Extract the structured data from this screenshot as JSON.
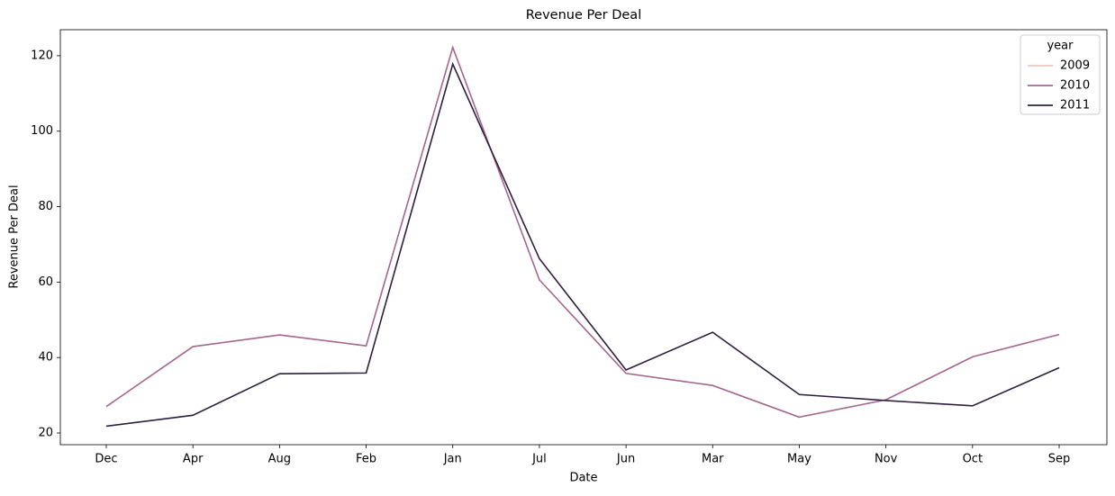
{
  "chart_data": {
    "type": "line",
    "title": "Revenue Per Deal",
    "xlabel": "Date",
    "ylabel": "Revenue Per Deal",
    "categories": [
      "Dec",
      "Apr",
      "Aug",
      "Feb",
      "Jan",
      "Jul",
      "Jun",
      "Mar",
      "May",
      "Nov",
      "Oct",
      "Sep"
    ],
    "series": [
      {
        "name": "2009",
        "color": "#e8cabb",
        "values": [
          null,
          null,
          null,
          null,
          null,
          null,
          null,
          null,
          null,
          null,
          null,
          null
        ]
      },
      {
        "name": "2010",
        "color": "#a5668d",
        "values": [
          27.0,
          42.9,
          46.0,
          43.1,
          122.2,
          60.6,
          35.8,
          32.6,
          24.2,
          28.8,
          40.2,
          46.1
        ]
      },
      {
        "name": "2011",
        "color": "#2d1f3d",
        "values": [
          21.8,
          24.7,
          35.7,
          35.9,
          117.8,
          66.2,
          36.7,
          46.7,
          30.2,
          28.6,
          27.2,
          37.3
        ]
      }
    ],
    "legend_title": "year",
    "legend": "upper right",
    "ylim": [
      16.9,
      126.9
    ],
    "yticks": [
      20,
      40,
      60,
      80,
      100,
      120
    ],
    "grid": false
  }
}
